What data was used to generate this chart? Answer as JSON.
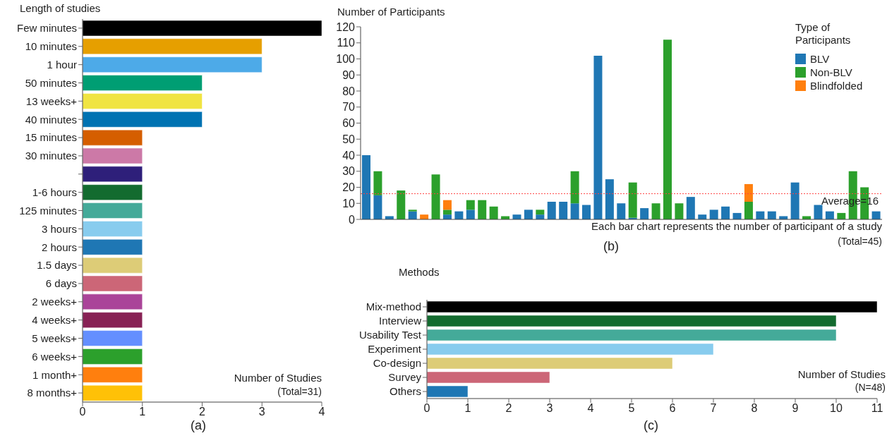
{
  "chart_data": [
    {
      "type": "bar",
      "orientation": "horizontal",
      "ylabel": "Length of studies",
      "xlabel": "Number of Studies",
      "categories": [
        "Few minutes",
        "10 minutes",
        "1 hour",
        "50 minutes",
        "13 weeks+",
        "40 minutes",
        "15 minutes",
        "30 minutes",
        null,
        "1-6 hours",
        "125 minutes",
        "3 hours",
        "2 hours",
        "1.5 days",
        "6 days",
        "2 weeks+",
        "4 weeks+",
        "5 weeks+",
        "6 weeks+",
        "1 month+",
        "8 months+"
      ],
      "values": [
        4,
        3,
        3,
        2,
        2,
        2,
        1,
        1,
        1,
        1,
        1,
        1,
        1,
        1,
        1,
        1,
        1,
        1,
        1,
        1,
        1
      ],
      "colors": [
        "#000000",
        "#e69f00",
        "#4daae8",
        "#009e73",
        "#f0e442",
        "#0072b2",
        "#d55e00",
        "#cc79a7",
        "#2e1f7a",
        "#136b2f",
        "#44aa99",
        "#88ccee",
        "#1f77b4",
        "#ddcc77",
        "#cc6677",
        "#aa4499",
        "#882255",
        "#648fff",
        "#2ca02c",
        "#ff7f0e",
        "#ffc107"
      ],
      "xlim": [
        0,
        4
      ],
      "xticks": [
        0,
        1,
        2,
        3,
        4
      ],
      "grid": false,
      "legend": false,
      "annotations": [
        "(Total=31)",
        "(a)"
      ]
    },
    {
      "type": "bar",
      "stacked": true,
      "ylabel": "Number of Participants",
      "xlabel": "Each bar chart represents the number of participant of a study",
      "legend_title": "Type of Participants",
      "categories": [
        null,
        null,
        null,
        null,
        null,
        null,
        null,
        null,
        null,
        null,
        null,
        null,
        null,
        null,
        null,
        null,
        null,
        null,
        null,
        null,
        null,
        null,
        null,
        null,
        null,
        null,
        null,
        null,
        null,
        null,
        null,
        null,
        null,
        null,
        null,
        null,
        null,
        null,
        null,
        null,
        null,
        null,
        null,
        null,
        null
      ],
      "series": [
        {
          "name": "BLV",
          "color": "#1f77b4",
          "values": [
            40,
            15,
            2,
            null,
            5,
            null,
            null,
            3,
            5,
            6,
            null,
            null,
            null,
            3,
            6,
            3,
            11,
            11,
            10,
            9,
            102,
            25,
            10,
            1,
            7,
            null,
            null,
            null,
            14,
            3,
            6,
            8,
            4,
            null,
            5,
            5,
            2,
            23,
            null,
            9,
            5,
            null,
            null,
            null,
            5
          ]
        },
        {
          "name": "Non-BLV",
          "color": "#2ca02c",
          "values": [
            null,
            15,
            null,
            18,
            1,
            null,
            28,
            3,
            null,
            6,
            12,
            8,
            2,
            null,
            null,
            3,
            null,
            null,
            20,
            null,
            null,
            null,
            null,
            22,
            null,
            10,
            112,
            10,
            null,
            null,
            null,
            null,
            null,
            11,
            null,
            null,
            null,
            null,
            2,
            null,
            null,
            4,
            30,
            20,
            null
          ]
        },
        {
          "name": "Blindfolded",
          "color": "#ff7f0e",
          "values": [
            null,
            null,
            null,
            null,
            null,
            3,
            null,
            6,
            null,
            null,
            null,
            null,
            null,
            null,
            null,
            null,
            null,
            null,
            null,
            null,
            null,
            null,
            null,
            null,
            null,
            null,
            null,
            null,
            null,
            null,
            null,
            null,
            null,
            11,
            null,
            null,
            null,
            null,
            null,
            null,
            null,
            null,
            null,
            null,
            null
          ]
        }
      ],
      "ylim": [
        0,
        120
      ],
      "yticks": [
        0,
        10,
        20,
        30,
        40,
        50,
        60,
        70,
        80,
        90,
        100,
        110,
        120
      ],
      "tick_labels": "y",
      "grid": false,
      "legend": "top right",
      "ref_lines": [
        {
          "axis": "y",
          "value": 16,
          "label": "Average=16",
          "color": "#ff4444",
          "line_style": "dotted"
        }
      ],
      "annotations": [
        "(Total=45)",
        "(b)"
      ]
    },
    {
      "type": "bar",
      "orientation": "horizontal",
      "ylabel": "Methods",
      "xlabel": "Number of Studies",
      "categories": [
        "Mix-method",
        "Interview",
        "Usability Test",
        "Experiment",
        "Co-design",
        "Survey",
        "Others"
      ],
      "values": [
        11,
        10,
        10,
        7,
        6,
        3,
        1
      ],
      "colors": [
        "#000000",
        "#136b2f",
        "#44aa99",
        "#88ccee",
        "#ddcc77",
        "#cc6677",
        "#1f77b4"
      ],
      "xlim": [
        0,
        11
      ],
      "xticks": [
        0,
        1,
        2,
        3,
        4,
        5,
        6,
        7,
        8,
        9,
        10,
        11
      ],
      "grid": false,
      "legend": false,
      "annotations": [
        "(N=48)",
        "(c)"
      ]
    }
  ]
}
